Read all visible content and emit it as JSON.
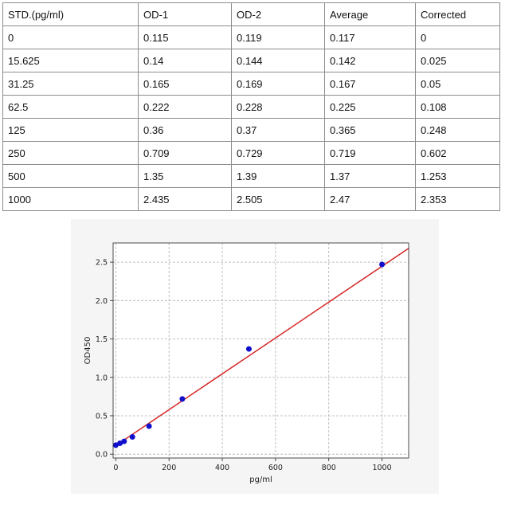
{
  "table": {
    "headers": [
      "STD.(pg/ml)",
      "OD-1",
      "OD-2",
      "Average",
      "Corrected"
    ],
    "rows": [
      [
        "0",
        "0.115",
        "0.119",
        "0.117",
        "0"
      ],
      [
        "15.625",
        "0.14",
        "0.144",
        "0.142",
        "0.025"
      ],
      [
        "31.25",
        "0.165",
        "0.169",
        "0.167",
        "0.05"
      ],
      [
        "62.5",
        "0.222",
        "0.228",
        "0.225",
        "0.108"
      ],
      [
        "125",
        "0.36",
        "0.37",
        "0.365",
        "0.248"
      ],
      [
        "250",
        "0.709",
        "0.729",
        "0.719",
        "0.602"
      ],
      [
        "500",
        "1.35",
        "1.39",
        "1.37",
        "1.253"
      ],
      [
        "1000",
        "2.435",
        "2.505",
        "2.47",
        "2.353"
      ]
    ]
  },
  "chart_data": {
    "type": "scatter",
    "title": "",
    "xlabel": "pg/ml",
    "ylabel": "OD450",
    "xlim": [
      -10,
      1100
    ],
    "ylim": [
      -0.05,
      2.75
    ],
    "xticks": [
      0,
      200,
      400,
      600,
      800,
      1000
    ],
    "yticks": [
      0.0,
      0.5,
      1.0,
      1.5,
      2.0,
      2.5
    ],
    "grid": true,
    "series": [
      {
        "x": [
          0,
          15.625,
          31.25,
          62.5,
          125,
          250,
          500,
          1000
        ],
        "y": [
          0.117,
          0.142,
          0.167,
          0.225,
          0.365,
          0.719,
          1.37,
          2.47
        ],
        "color": "#1010cc"
      }
    ],
    "fit_line": {
      "x": [
        0,
        1100
      ],
      "y": [
        0.112,
        2.68
      ],
      "color": "#d62728"
    },
    "colors": {
      "points": "#1010cc",
      "fit": "#d62728",
      "grid": "#b0b0b0",
      "panel": "#f5f5f5"
    }
  }
}
